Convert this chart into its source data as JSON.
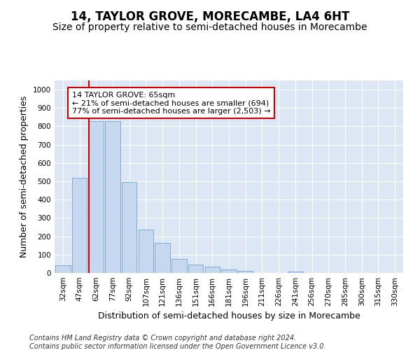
{
  "title": "14, TAYLOR GROVE, MORECAMBE, LA4 6HT",
  "subtitle": "Size of property relative to semi-detached houses in Morecambe",
  "xlabel": "Distribution of semi-detached houses by size in Morecambe",
  "ylabel": "Number of semi-detached properties",
  "footnote1": "Contains HM Land Registry data © Crown copyright and database right 2024.",
  "footnote2": "Contains public sector information licensed under the Open Government Licence v3.0.",
  "annotation_title": "14 TAYLOR GROVE: 65sqm",
  "annotation_line1": "← 21% of semi-detached houses are smaller (694)",
  "annotation_line2": "77% of semi-detached houses are larger (2,503) →",
  "categories": [
    "32sqm",
    "47sqm",
    "62sqm",
    "77sqm",
    "92sqm",
    "107sqm",
    "121sqm",
    "136sqm",
    "151sqm",
    "166sqm",
    "181sqm",
    "196sqm",
    "211sqm",
    "226sqm",
    "241sqm",
    "256sqm",
    "270sqm",
    "285sqm",
    "300sqm",
    "315sqm",
    "330sqm"
  ],
  "values": [
    43,
    520,
    830,
    830,
    495,
    235,
    163,
    75,
    47,
    33,
    18,
    13,
    0,
    0,
    8,
    0,
    0,
    0,
    0,
    0,
    0
  ],
  "bar_color": "#c5d8f0",
  "bar_edge_color": "#7aadd4",
  "red_line_index": 2,
  "ylim": [
    0,
    1050
  ],
  "yticks": [
    0,
    100,
    200,
    300,
    400,
    500,
    600,
    700,
    800,
    900,
    1000
  ],
  "background_color": "#dce6f5",
  "grid_color": "#ffffff",
  "annotation_box_color": "#ffffff",
  "annotation_box_edge": "#cc0000",
  "red_line_color": "#cc0000",
  "title_fontsize": 12,
  "subtitle_fontsize": 10,
  "axis_label_fontsize": 9,
  "tick_fontsize": 7.5,
  "annotation_fontsize": 8,
  "footnote_fontsize": 7
}
